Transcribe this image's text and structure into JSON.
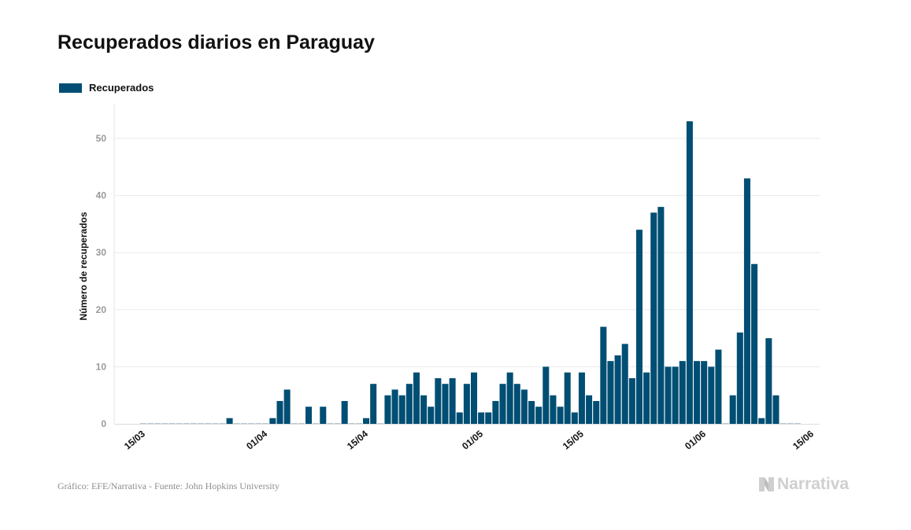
{
  "title": "Recuperados diarios en Paraguay",
  "legend": {
    "label": "Recuperados",
    "color": "#004e73"
  },
  "source": "Gráfico: EFE/Narrativa - Fuente: John Hopkins University",
  "brand": "Narrativa",
  "chart_data": {
    "type": "bar",
    "title": "Recuperados diarios en Paraguay",
    "ylabel": "Número de recuperados",
    "xlabel": "",
    "ylim": [
      0,
      55
    ],
    "yticks": [
      0,
      10,
      20,
      30,
      40,
      50
    ],
    "xtick_labels": [
      "15/03",
      "01/04",
      "15/04",
      "01/05",
      "15/05",
      "01/06",
      "15/06"
    ],
    "grid": true,
    "legend_position": "top-left",
    "bar_color": "#004e73",
    "series": [
      {
        "name": "Recuperados",
        "dates": [
          "15/03",
          "16/03",
          "17/03",
          "18/03",
          "19/03",
          "20/03",
          "21/03",
          "22/03",
          "23/03",
          "24/03",
          "25/03",
          "26/03",
          "27/03",
          "28/03",
          "29/03",
          "30/03",
          "31/03",
          "01/04",
          "02/04",
          "03/04",
          "04/04",
          "05/04",
          "06/04",
          "07/04",
          "08/04",
          "09/04",
          "10/04",
          "11/04",
          "12/04",
          "13/04",
          "14/04",
          "15/04",
          "16/04",
          "17/04",
          "18/04",
          "19/04",
          "20/04",
          "21/04",
          "22/04",
          "23/04",
          "24/04",
          "25/04",
          "26/04",
          "27/04",
          "28/04",
          "29/04",
          "30/04",
          "01/05",
          "02/05",
          "03/05",
          "04/05",
          "05/05",
          "06/05",
          "07/05",
          "08/05",
          "09/05",
          "10/05",
          "11/05",
          "12/05",
          "13/05",
          "14/05",
          "15/05",
          "16/05",
          "17/05",
          "18/05",
          "19/05",
          "20/05",
          "21/05",
          "22/05",
          "23/05",
          "24/05",
          "25/05",
          "26/05",
          "27/05",
          "28/05",
          "29/05",
          "30/05",
          "31/05",
          "01/06",
          "02/06",
          "03/06",
          "04/06",
          "05/06",
          "06/06",
          "07/06",
          "08/06",
          "09/06",
          "10/06",
          "11/06",
          "12/06",
          "13/06",
          "14/06"
        ],
        "values": [
          0,
          0,
          0,
          0,
          0,
          0,
          0,
          0,
          0,
          0,
          0,
          0,
          1,
          0,
          0,
          0,
          0,
          0,
          1,
          4,
          6,
          0,
          0,
          3,
          0,
          3,
          0,
          0,
          4,
          0,
          0,
          1,
          7,
          0,
          5,
          6,
          5,
          7,
          9,
          5,
          3,
          8,
          7,
          8,
          2,
          7,
          9,
          2,
          2,
          4,
          7,
          9,
          7,
          6,
          4,
          3,
          10,
          5,
          3,
          9,
          2,
          9,
          5,
          4,
          17,
          11,
          12,
          14,
          8,
          34,
          9,
          37,
          38,
          10,
          10,
          11,
          53,
          11,
          11,
          10,
          13,
          0,
          5,
          16,
          43,
          28,
          1,
          15,
          5,
          0,
          0,
          0
        ]
      }
    ]
  }
}
